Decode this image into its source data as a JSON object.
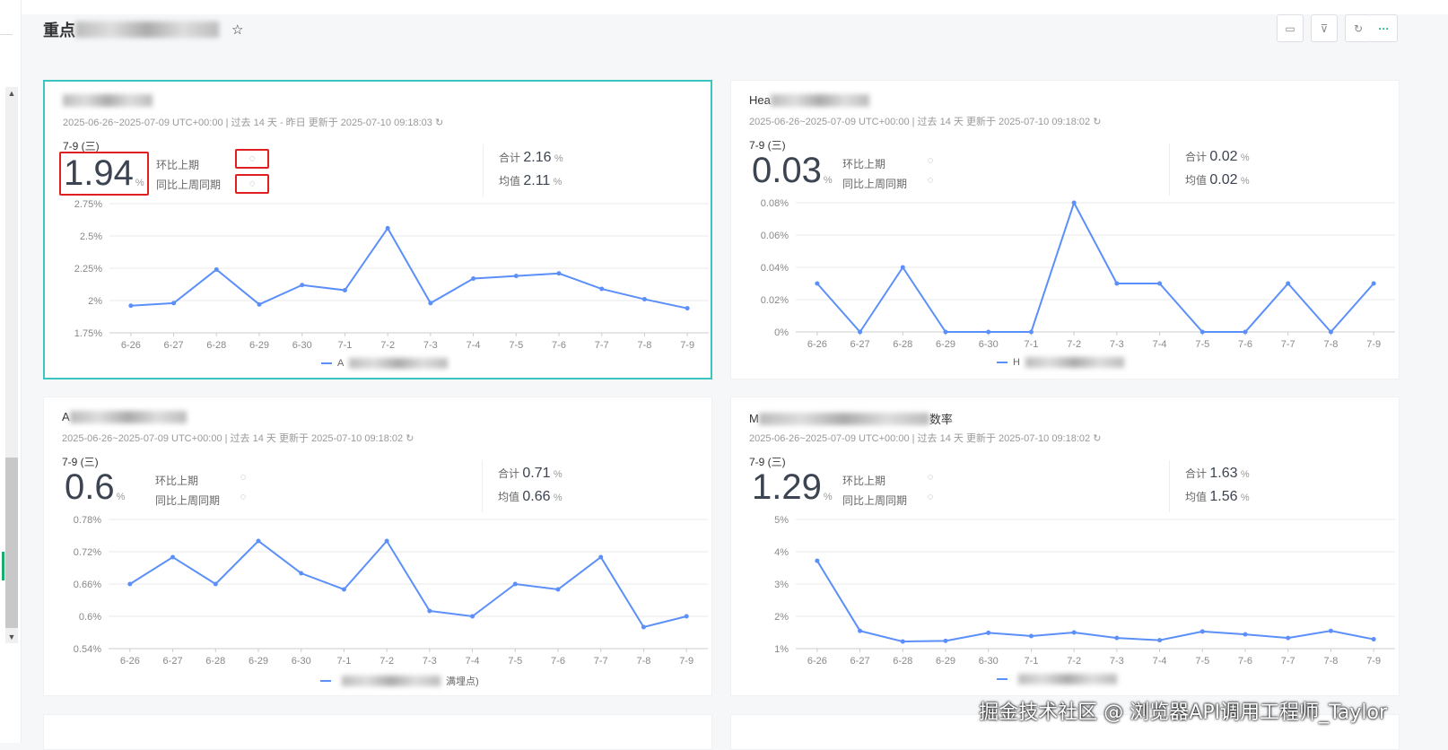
{
  "page": {
    "title_prefix": "重点",
    "star_icon": "star-icon"
  },
  "toolbar": [
    {
      "icon": "calendar-icon",
      "glyph": "▭"
    },
    {
      "icon": "filter-icon",
      "glyph": "⊽"
    },
    {
      "icon": "refresh-icon",
      "glyph": "↻"
    },
    {
      "icon": "more-icon",
      "glyph": "···"
    }
  ],
  "colors": {
    "line": "#5b8ff9",
    "selected_border": "#3cc4c0",
    "highlight": "#e02020"
  },
  "labels": {
    "mom": "环比上期",
    "wow": "同比上周同期",
    "sum": "合计",
    "avg": "均值",
    "unit": "%",
    "date": "7-9 (三)",
    "loading": "◌"
  },
  "watermark": "掘金技术社区 @ 浏览器API调用工程师_Taylor",
  "cards": [
    {
      "title": "",
      "meta": "2025-06-26~2025-07-09 UTC+00:00  | 过去 14 天 - 昨日 更新于 2025-07-10 09:18:03 ↻",
      "value": "1.94",
      "sum": "2.16",
      "avg": "2.11",
      "legend": "A",
      "legend_suffix": ""
    },
    {
      "title": "Hea",
      "meta": "2025-06-26~2025-07-09 UTC+00:00  | 过去 14 天 更新于 2025-07-10 09:18:02 ↻",
      "value": "0.03",
      "sum": "0.02",
      "avg": "0.02",
      "legend": "H",
      "legend_suffix": ""
    },
    {
      "title": "A",
      "meta": "2025-06-26~2025-07-09 UTC+00:00  | 过去 14 天 更新于 2025-07-10 09:18:02 ↻",
      "value": "0.6",
      "sum": "0.71",
      "avg": "0.66",
      "legend": "",
      "legend_suffix": "满埋点)"
    },
    {
      "title": "M",
      "title_suffix": "数率",
      "meta": "2025-06-26~2025-07-09 UTC+00:00  | 过去 14 天 更新于 2025-07-10 09:18:02 ↻",
      "value": "1.29",
      "sum": "1.63",
      "avg": "1.56",
      "legend": "",
      "legend_suffix": ""
    }
  ],
  "chart_data": [
    {
      "type": "line",
      "categories": [
        "6-26",
        "6-27",
        "6-28",
        "6-29",
        "6-30",
        "7-1",
        "7-2",
        "7-3",
        "7-4",
        "7-5",
        "7-6",
        "7-7",
        "7-8",
        "7-9"
      ],
      "values": [
        1.96,
        1.98,
        2.24,
        1.97,
        2.12,
        2.08,
        2.56,
        1.98,
        2.17,
        2.19,
        2.21,
        2.09,
        2.01,
        1.94
      ],
      "yticks": [
        "1.75%",
        "2%",
        "2.25%",
        "2.5%",
        "2.75%"
      ],
      "ylim": [
        1.75,
        2.75
      ],
      "grid": true,
      "legend": "bottom"
    },
    {
      "type": "line",
      "categories": [
        "6-26",
        "6-27",
        "6-28",
        "6-29",
        "6-30",
        "7-1",
        "7-2",
        "7-3",
        "7-4",
        "7-5",
        "7-6",
        "7-7",
        "7-8",
        "7-9"
      ],
      "values": [
        0.03,
        0,
        0.04,
        0,
        0,
        0,
        0.08,
        0.03,
        0.03,
        0,
        0,
        0.03,
        0,
        0.03
      ],
      "yticks": [
        "0%",
        "0.02%",
        "0.04%",
        "0.06%",
        "0.08%"
      ],
      "ylim": [
        0,
        0.08
      ],
      "grid": true,
      "legend": "bottom"
    },
    {
      "type": "line",
      "categories": [
        "6-26",
        "6-27",
        "6-28",
        "6-29",
        "6-30",
        "7-1",
        "7-2",
        "7-3",
        "7-4",
        "7-5",
        "7-6",
        "7-7",
        "7-8",
        "7-9"
      ],
      "values": [
        0.66,
        0.71,
        0.66,
        0.74,
        0.68,
        0.65,
        0.74,
        0.61,
        0.6,
        0.66,
        0.65,
        0.71,
        0.58,
        0.6
      ],
      "yticks": [
        "0.54%",
        "0.6%",
        "0.66%",
        "0.72%",
        "0.78%"
      ],
      "ylim": [
        0.54,
        0.78
      ],
      "grid": true,
      "legend": "bottom"
    },
    {
      "type": "line",
      "categories": [
        "6-26",
        "6-27",
        "6-28",
        "6-29",
        "6-30",
        "7-1",
        "7-2",
        "7-3",
        "7-4",
        "7-5",
        "7-6",
        "7-7",
        "7-8",
        "7-9"
      ],
      "values": [
        3.72,
        1.55,
        1.22,
        1.24,
        1.49,
        1.39,
        1.5,
        1.33,
        1.26,
        1.53,
        1.44,
        1.33,
        1.55,
        1.29
      ],
      "yticks": [
        "1%",
        "2%",
        "3%",
        "4%",
        "5%"
      ],
      "ylim": [
        1,
        5
      ],
      "grid": true,
      "legend": "bottom"
    }
  ]
}
